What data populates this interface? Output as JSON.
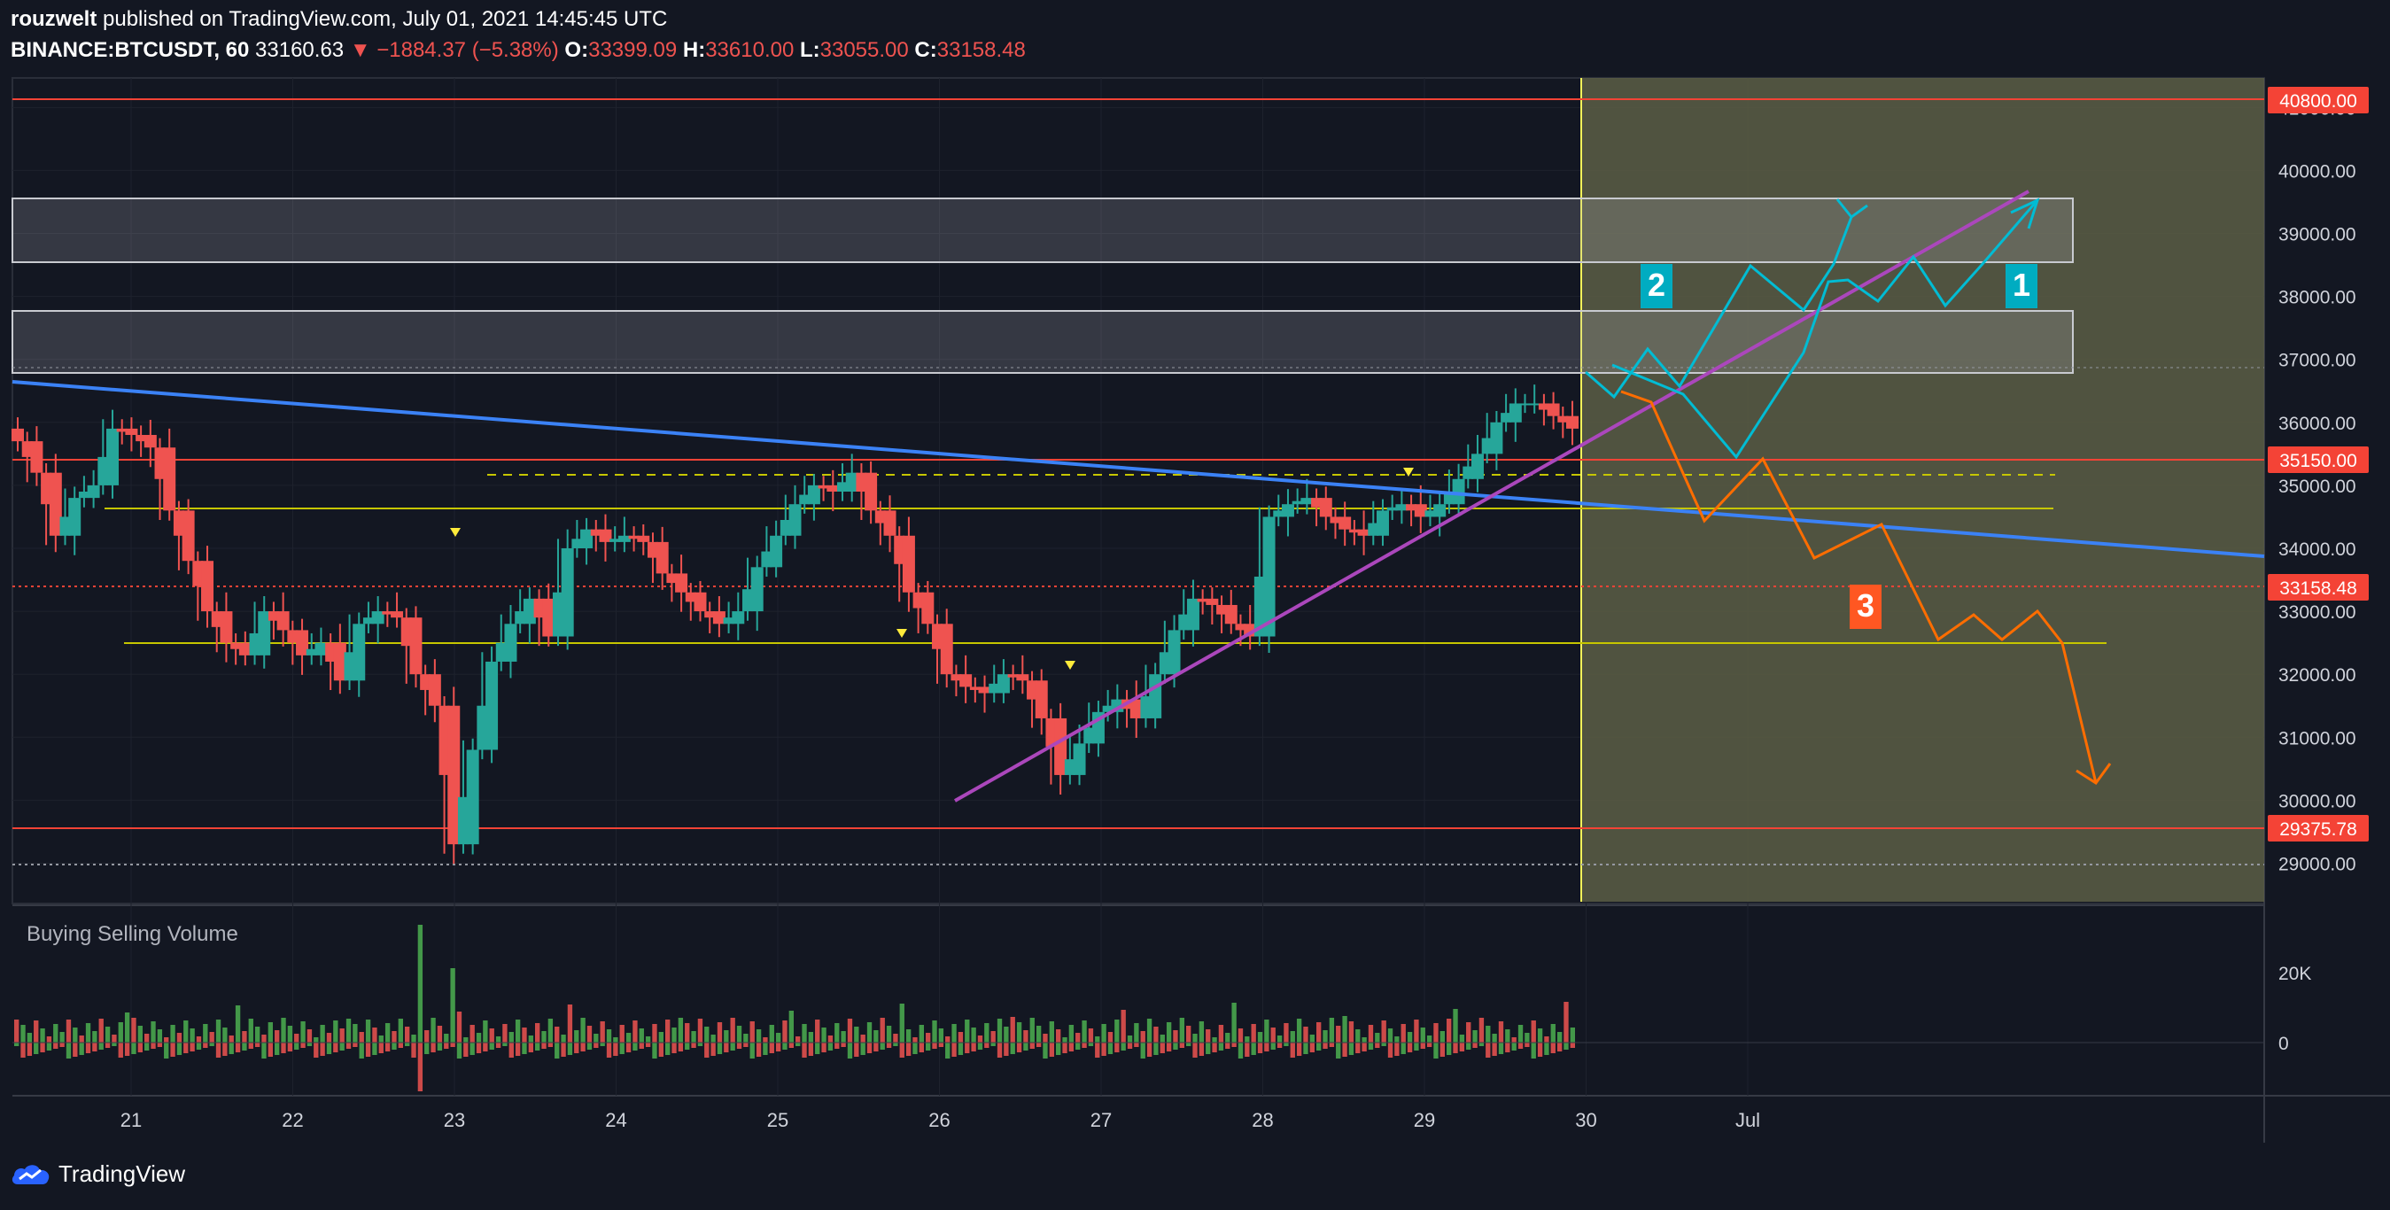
{
  "header": {
    "author": "rouzwelt",
    "published_text": "published on TradingView.com, July 01, 2021 14:45:45 UTC",
    "symbol": "BINANCE:BTCUSDT, 60",
    "last": "33160.63",
    "change": "−1884.37 (−5.38%)",
    "o_label": "O:",
    "o_value": "33399.09",
    "h_label": "H:",
    "h_value": "33610.00",
    "l_label": "L:",
    "l_value": "33055.00",
    "c_label": "C:",
    "c_value": "33158.48"
  },
  "indicator": {
    "name": "Buying Selling Volume"
  },
  "footer": {
    "brand": "TradingView"
  },
  "colors": {
    "background": "#131722",
    "up": "#26a69a",
    "down": "#ef5350",
    "trendline_blue": "#3b82f6",
    "trendline_purple": "#ab47bc",
    "path_teal": "#00bcd4",
    "path_orange": "#ff6d00",
    "level_red": "#f44336",
    "level_yellow": "#c6c600",
    "projection_zone": "#5c5e45"
  },
  "chart_data": {
    "type": "candlestick",
    "ylim": [
      28500,
      41300
    ],
    "y_ticks": [
      "41000.00",
      "40000.00",
      "39000.00",
      "38000.00",
      "37000.00",
      "36000.00",
      "35000.00",
      "34000.00",
      "33000.00",
      "32000.00",
      "31000.00",
      "30000.00",
      "29000.00"
    ],
    "x_ticks": [
      "21",
      "22",
      "23",
      "24",
      "25",
      "26",
      "27",
      "28",
      "29",
      "30",
      "Jul"
    ],
    "price_labels": [
      {
        "value": "40800.00",
        "color": "#f44336"
      },
      {
        "value": "35150.00",
        "color": "#f44336"
      },
      {
        "value": "33158.48",
        "color": "#f44336"
      },
      {
        "value": "29375.78",
        "color": "#f44336"
      }
    ],
    "scenario_labels": [
      "1",
      "2",
      "3"
    ],
    "volume_ticks": [
      "20K",
      "0"
    ],
    "series_close_approx": [
      35700,
      35200,
      34200,
      34800,
      35000,
      35900,
      35800,
      35600,
      34600,
      33800,
      33000,
      32500,
      32300,
      33000,
      32700,
      32300,
      32500,
      31900,
      32800,
      33000,
      32900,
      32000,
      31500,
      29300,
      30800,
      32200,
      32800,
      33200,
      32600,
      34000,
      34300,
      34100,
      34200,
      34100,
      33600,
      33300,
      33000,
      32800,
      33000,
      33700,
      34200,
      34700,
      35000,
      34900,
      35200,
      34600,
      34200,
      33300,
      32800,
      32000,
      31800,
      31700,
      32000,
      31900,
      31300,
      30400,
      30900,
      31400,
      31600,
      31300,
      32000,
      32700,
      33200,
      33100,
      32800,
      32600,
      34500,
      34700,
      34800,
      34500,
      34300,
      34200,
      34600,
      34700,
      34500,
      34700,
      35100,
      35500,
      36000,
      36300,
      36300,
      36100,
      35900
    ]
  }
}
